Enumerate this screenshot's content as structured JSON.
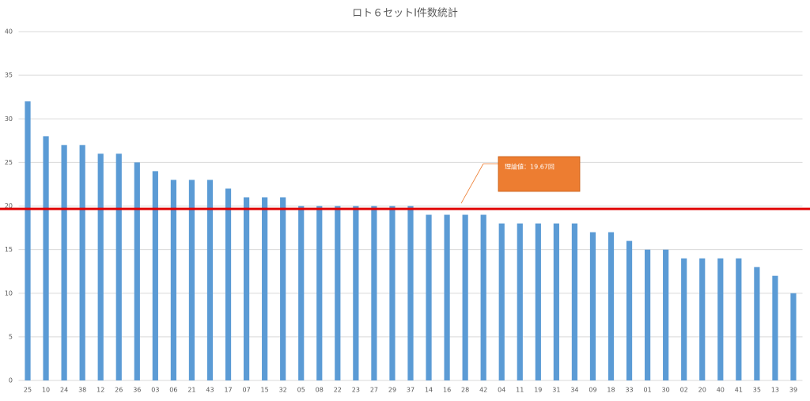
{
  "chart_data": {
    "type": "bar",
    "title": "ロト６セットI件数統計",
    "categories": [
      "25",
      "10",
      "24",
      "38",
      "12",
      "26",
      "36",
      "03",
      "06",
      "21",
      "43",
      "17",
      "07",
      "15",
      "32",
      "05",
      "08",
      "22",
      "23",
      "27",
      "29",
      "37",
      "14",
      "16",
      "28",
      "42",
      "04",
      "11",
      "19",
      "31",
      "34",
      "09",
      "18",
      "33",
      "01",
      "30",
      "02",
      "20",
      "40",
      "41",
      "35",
      "13",
      "39"
    ],
    "values": [
      32,
      28,
      27,
      27,
      26,
      26,
      25,
      24,
      23,
      23,
      23,
      22,
      21,
      21,
      21,
      20,
      20,
      20,
      20,
      20,
      20,
      20,
      19,
      19,
      19,
      19,
      18,
      18,
      18,
      18,
      18,
      17,
      17,
      16,
      15,
      15,
      14,
      14,
      14,
      14,
      13,
      12,
      10
    ],
    "color": "#5b9bd5",
    "ylim": [
      0,
      40
    ],
    "yticks": [
      0,
      5,
      10,
      15,
      20,
      25,
      30,
      35,
      40
    ],
    "grid": true,
    "reference_value": 19.67,
    "reference_color": "#e00000",
    "annotation": "理論値：19.67回",
    "annotation_color": "#ed7d31"
  }
}
